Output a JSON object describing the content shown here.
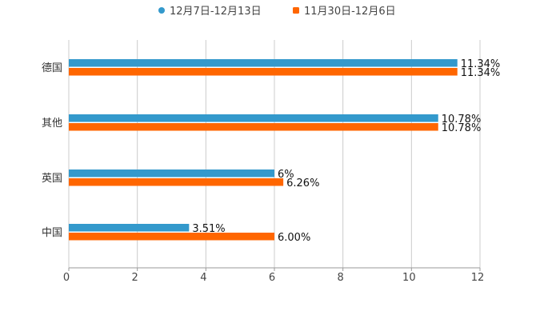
{
  "chart_data": {
    "type": "bar",
    "orientation": "horizontal",
    "title": "",
    "xlabel": "",
    "ylabel": "",
    "categories": [
      "德国",
      "其他",
      "英国",
      "中国"
    ],
    "series": [
      {
        "name": "12月7日-12月13日",
        "color": "#3399cc",
        "values": [
          11.34,
          10.78,
          6,
          3.51
        ],
        "labels": [
          "11.34%",
          "10.78%",
          "6%",
          "3.51%"
        ]
      },
      {
        "name": "11月30日-12月6日",
        "color": "#ff6600",
        "values": [
          11.34,
          10.78,
          6.26,
          6.0
        ],
        "labels": [
          "11.34%",
          "10.78%",
          "6.26%",
          "6.00%"
        ]
      }
    ],
    "xlim": [
      0,
      12
    ],
    "xticks": [
      "0",
      "2",
      "4",
      "6",
      "8",
      "10",
      "12"
    ],
    "grid": true,
    "legend": "top-center"
  }
}
